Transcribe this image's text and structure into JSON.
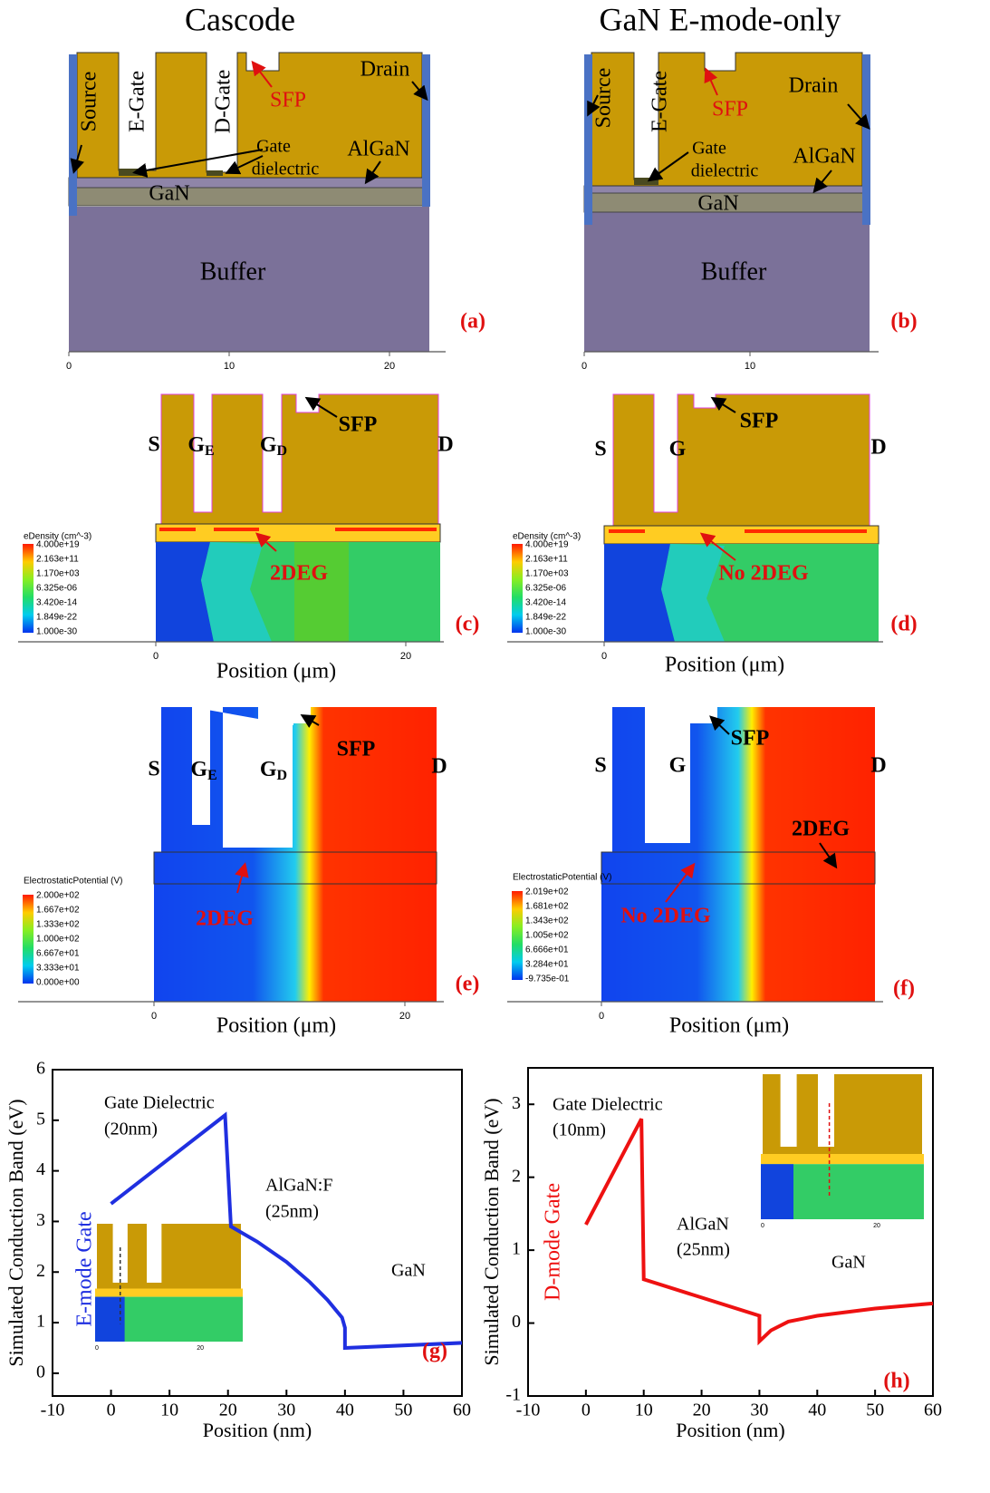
{
  "column_titles": [
    "Cascode",
    "GaN E-mode-only"
  ],
  "panel_a": {
    "source": "Source",
    "e_gate": "E-Gate",
    "d_gate": "D-Gate",
    "sfp": "SFP",
    "drain": "Drain",
    "gate_dielectric": [
      "Gate",
      "dielectric"
    ],
    "algan": "AlGaN",
    "gan": "GaN",
    "buffer": "Buffer",
    "letter": "(a)",
    "xticks": [
      0,
      10,
      20
    ]
  },
  "panel_b": {
    "source": "Source",
    "e_gate": "E-Gate",
    "sfp": "SFP",
    "drain": "Drain",
    "gate_dielectric": [
      "Gate",
      "dielectric"
    ],
    "algan": "AlGaN",
    "gan": "GaN",
    "buffer": "Buffer",
    "letter": "(b)",
    "xticks": [
      0,
      10
    ]
  },
  "panel_c": {
    "s": "S",
    "ge": [
      "G",
      "E"
    ],
    "gd": [
      "G",
      "D"
    ],
    "sfp": "SFP",
    "d": "D",
    "note": "2DEG",
    "letter": "(c)",
    "colorbar_title": "eDensity (cm^-3)",
    "colorbar_labels": [
      "4.000e+19",
      "2.163e+11",
      "1.170e+03",
      "6.325e-06",
      "3.420e-14",
      "1.849e-22",
      "1.000e-30"
    ],
    "xticks": [
      0,
      20
    ],
    "xlabel": "Position (μm)"
  },
  "panel_d": {
    "s": "S",
    "g": "G",
    "sfp": "SFP",
    "d": "D",
    "note": "No 2DEG",
    "letter": "(d)",
    "colorbar_title": "eDensity (cm^-3)",
    "colorbar_labels": [
      "4.000e+19",
      "2.163e+11",
      "1.170e+03",
      "6.325e-06",
      "3.420e-14",
      "1.849e-22",
      "1.000e-30"
    ],
    "xticks": [
      0
    ],
    "xlabel": "Position (μm)"
  },
  "panel_e": {
    "s": "S",
    "ge": [
      "G",
      "E"
    ],
    "gd": [
      "G",
      "D"
    ],
    "sfp": "SFP",
    "d": "D",
    "note": "2DEG",
    "letter": "(e)",
    "colorbar_title": "ElectrostaticPotential (V)",
    "colorbar_labels": [
      "2.000e+02",
      "1.667e+02",
      "1.333e+02",
      "1.000e+02",
      "6.667e+01",
      "3.333e+01",
      "0.000e+00"
    ],
    "xticks": [
      0,
      20
    ],
    "xlabel": "Position (μm)"
  },
  "panel_f": {
    "s": "S",
    "g": "G",
    "sfp": "SFP",
    "d": "D",
    "note": "No 2DEG",
    "note2": "2DEG",
    "letter": "(f)",
    "colorbar_title": "ElectrostaticPotential (V)",
    "colorbar_labels": [
      "2.019e+02",
      "1.681e+02",
      "1.343e+02",
      "1.005e+02",
      "6.666e+01",
      "3.284e+01",
      "-9.735e-01"
    ],
    "xticks": [
      0
    ],
    "xlabel": "Position (μm)"
  },
  "chart_data": [
    {
      "type": "line",
      "letter": "(g)",
      "xlabel": "Position (nm)",
      "ylabel": "Simulated Conduction Band (eV)",
      "x": [
        0,
        19.5,
        20.5,
        25,
        30,
        34,
        37,
        39.5,
        40,
        40,
        60
      ],
      "series": [
        {
          "name": "E-mode Gate",
          "color": "#1f2fe0",
          "values": [
            3.35,
            5.1,
            2.9,
            2.6,
            2.2,
            1.8,
            1.45,
            1.1,
            0.9,
            0.5,
            0.6
          ]
        }
      ],
      "annotations": [
        "Gate Dielectric",
        "(20nm)",
        "AlGaN:F",
        "(25nm)",
        "GaN"
      ],
      "xlim": [
        -10,
        60
      ],
      "ylim": [
        -0.45,
        6
      ],
      "xticks": [
        -10,
        0,
        10,
        20,
        30,
        40,
        50,
        60
      ],
      "yticks": [
        0,
        1,
        2,
        3,
        4,
        5,
        6
      ],
      "inset_xticks": [
        0,
        20
      ]
    },
    {
      "type": "line",
      "letter": "(h)",
      "xlabel": "Position (nm)",
      "ylabel": "Simulated Conduction Band (eV)",
      "x": [
        0,
        9.6,
        10,
        20,
        30,
        30,
        32,
        35,
        40,
        50,
        60
      ],
      "series": [
        {
          "name": "D-mode Gate",
          "color": "#ee1111",
          "values": [
            1.35,
            2.8,
            0.6,
            0.35,
            0.1,
            -0.25,
            -0.1,
            0.02,
            0.1,
            0.2,
            0.27
          ]
        }
      ],
      "annotations": [
        "Gate Dielectric",
        "(10nm)",
        "AlGaN",
        "(25nm)",
        "GaN"
      ],
      "xlim": [
        -10,
        60
      ],
      "ylim": [
        -1,
        3.5
      ],
      "xticks": [
        -10,
        0,
        10,
        20,
        30,
        40,
        50,
        60
      ],
      "yticks": [
        -1,
        0,
        1,
        2,
        3
      ],
      "inset_xticks": [
        0,
        20
      ]
    }
  ]
}
